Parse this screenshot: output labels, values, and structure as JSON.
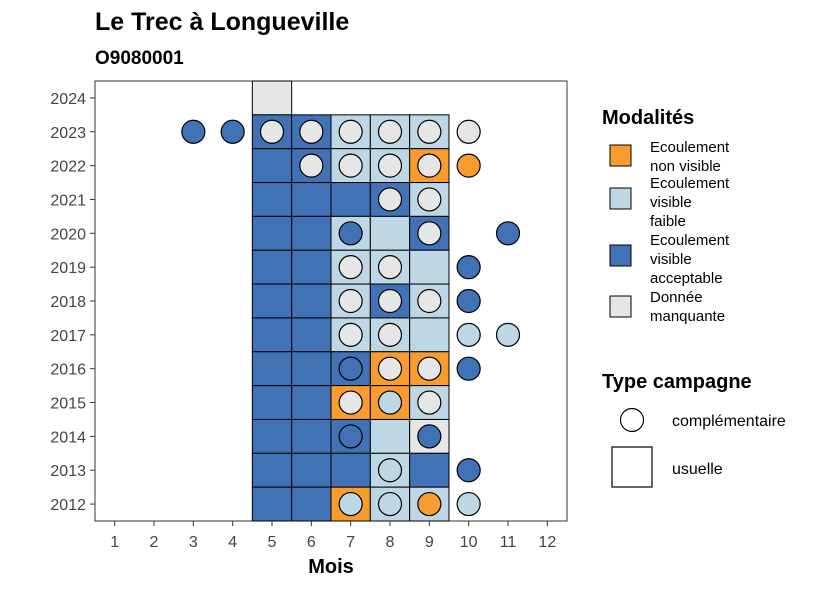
{
  "chart_data": {
    "type": "heatmap",
    "title": "Le Trec à Longueville",
    "subtitle": "O9080001",
    "xlabel": "Mois",
    "ylabel": "",
    "x_ticks": [
      "1",
      "2",
      "3",
      "4",
      "5",
      "6",
      "7",
      "8",
      "9",
      "10",
      "11",
      "12"
    ],
    "y_ticks": [
      "2012",
      "2013",
      "2014",
      "2015",
      "2016",
      "2017",
      "2018",
      "2019",
      "2020",
      "2021",
      "2022",
      "2023",
      "2024"
    ],
    "xlim": [
      0.5,
      12.5
    ],
    "ylim": [
      2011.5,
      2024.5
    ],
    "grid": false,
    "legend_position": "right",
    "colors": {
      "Ecoulement non visible": "#F99C2F",
      "Ecoulement visible faible": "#BED7E4",
      "Ecoulement visible acceptable": "#4172B5",
      "Donnée manquante": "#E6E6E6"
    },
    "legend_modalites": {
      "title": "Modalités",
      "items": [
        {
          "key": "Ecoulement non visible",
          "lines": [
            "Ecoulement",
            "non visible"
          ]
        },
        {
          "key": "Ecoulement visible faible",
          "lines": [
            "Ecoulement",
            "visible",
            "faible"
          ]
        },
        {
          "key": "Ecoulement visible acceptable",
          "lines": [
            "Ecoulement",
            "visible",
            "acceptable"
          ]
        },
        {
          "key": "Donnée manquante",
          "lines": [
            "Donnée",
            "manquante"
          ]
        }
      ]
    },
    "legend_campagne": {
      "title": "Type campagne",
      "items": [
        {
          "shape": "circle",
          "label": "complémentaire"
        },
        {
          "shape": "square",
          "label": "usuelle"
        }
      ]
    },
    "observations": [
      {
        "year": 2024,
        "month": 5,
        "campaign": "usuelle",
        "status": "Donnée manquante"
      },
      {
        "year": 2023,
        "month": 3,
        "campaign": "complémentaire",
        "status": "Ecoulement visible acceptable"
      },
      {
        "year": 2023,
        "month": 4,
        "campaign": "complémentaire",
        "status": "Ecoulement visible acceptable"
      },
      {
        "year": 2023,
        "month": 5,
        "campaign": "usuelle",
        "status": "Ecoulement visible acceptable"
      },
      {
        "year": 2023,
        "month": 5,
        "campaign": "complémentaire",
        "status": "Donnée manquante"
      },
      {
        "year": 2023,
        "month": 6,
        "campaign": "usuelle",
        "status": "Ecoulement visible acceptable"
      },
      {
        "year": 2023,
        "month": 6,
        "campaign": "complémentaire",
        "status": "Donnée manquante"
      },
      {
        "year": 2023,
        "month": 7,
        "campaign": "usuelle",
        "status": "Ecoulement visible faible"
      },
      {
        "year": 2023,
        "month": 7,
        "campaign": "complémentaire",
        "status": "Donnée manquante"
      },
      {
        "year": 2023,
        "month": 8,
        "campaign": "usuelle",
        "status": "Ecoulement visible faible"
      },
      {
        "year": 2023,
        "month": 8,
        "campaign": "complémentaire",
        "status": "Donnée manquante"
      },
      {
        "year": 2023,
        "month": 9,
        "campaign": "usuelle",
        "status": "Ecoulement visible faible"
      },
      {
        "year": 2023,
        "month": 9,
        "campaign": "complémentaire",
        "status": "Donnée manquante"
      },
      {
        "year": 2023,
        "month": 10,
        "campaign": "complémentaire",
        "status": "Donnée manquante"
      },
      {
        "year": 2022,
        "month": 5,
        "campaign": "usuelle",
        "status": "Ecoulement visible acceptable"
      },
      {
        "year": 2022,
        "month": 6,
        "campaign": "usuelle",
        "status": "Ecoulement visible acceptable"
      },
      {
        "year": 2022,
        "month": 6,
        "campaign": "complémentaire",
        "status": "Donnée manquante"
      },
      {
        "year": 2022,
        "month": 7,
        "campaign": "usuelle",
        "status": "Ecoulement visible faible"
      },
      {
        "year": 2022,
        "month": 7,
        "campaign": "complémentaire",
        "status": "Donnée manquante"
      },
      {
        "year": 2022,
        "month": 8,
        "campaign": "usuelle",
        "status": "Ecoulement visible faible"
      },
      {
        "year": 2022,
        "month": 8,
        "campaign": "complémentaire",
        "status": "Donnée manquante"
      },
      {
        "year": 2022,
        "month": 9,
        "campaign": "usuelle",
        "status": "Ecoulement non visible"
      },
      {
        "year": 2022,
        "month": 9,
        "campaign": "complémentaire",
        "status": "Donnée manquante"
      },
      {
        "year": 2022,
        "month": 10,
        "campaign": "complémentaire",
        "status": "Ecoulement non visible"
      },
      {
        "year": 2021,
        "month": 5,
        "campaign": "usuelle",
        "status": "Ecoulement visible acceptable"
      },
      {
        "year": 2021,
        "month": 6,
        "campaign": "usuelle",
        "status": "Ecoulement visible acceptable"
      },
      {
        "year": 2021,
        "month": 7,
        "campaign": "usuelle",
        "status": "Ecoulement visible acceptable"
      },
      {
        "year": 2021,
        "month": 8,
        "campaign": "usuelle",
        "status": "Ecoulement visible acceptable"
      },
      {
        "year": 2021,
        "month": 8,
        "campaign": "complémentaire",
        "status": "Donnée manquante"
      },
      {
        "year": 2021,
        "month": 9,
        "campaign": "usuelle",
        "status": "Ecoulement visible faible"
      },
      {
        "year": 2021,
        "month": 9,
        "campaign": "complémentaire",
        "status": "Donnée manquante"
      },
      {
        "year": 2020,
        "month": 5,
        "campaign": "usuelle",
        "status": "Ecoulement visible acceptable"
      },
      {
        "year": 2020,
        "month": 6,
        "campaign": "usuelle",
        "status": "Ecoulement visible acceptable"
      },
      {
        "year": 2020,
        "month": 7,
        "campaign": "usuelle",
        "status": "Ecoulement visible faible"
      },
      {
        "year": 2020,
        "month": 7,
        "campaign": "complémentaire",
        "status": "Ecoulement visible acceptable"
      },
      {
        "year": 2020,
        "month": 8,
        "campaign": "usuelle",
        "status": "Ecoulement visible faible"
      },
      {
        "year": 2020,
        "month": 9,
        "campaign": "usuelle",
        "status": "Ecoulement visible acceptable"
      },
      {
        "year": 2020,
        "month": 9,
        "campaign": "complémentaire",
        "status": "Donnée manquante"
      },
      {
        "year": 2020,
        "month": 11,
        "campaign": "complémentaire",
        "status": "Ecoulement visible acceptable"
      },
      {
        "year": 2019,
        "month": 5,
        "campaign": "usuelle",
        "status": "Ecoulement visible acceptable"
      },
      {
        "year": 2019,
        "month": 6,
        "campaign": "usuelle",
        "status": "Ecoulement visible acceptable"
      },
      {
        "year": 2019,
        "month": 7,
        "campaign": "usuelle",
        "status": "Ecoulement visible faible"
      },
      {
        "year": 2019,
        "month": 7,
        "campaign": "complémentaire",
        "status": "Donnée manquante"
      },
      {
        "year": 2019,
        "month": 8,
        "campaign": "usuelle",
        "status": "Ecoulement visible faible"
      },
      {
        "year": 2019,
        "month": 8,
        "campaign": "complémentaire",
        "status": "Donnée manquante"
      },
      {
        "year": 2019,
        "month": 9,
        "campaign": "usuelle",
        "status": "Ecoulement visible faible"
      },
      {
        "year": 2019,
        "month": 10,
        "campaign": "complémentaire",
        "status": "Ecoulement visible acceptable"
      },
      {
        "year": 2018,
        "month": 5,
        "campaign": "usuelle",
        "status": "Ecoulement visible acceptable"
      },
      {
        "year": 2018,
        "month": 6,
        "campaign": "usuelle",
        "status": "Ecoulement visible acceptable"
      },
      {
        "year": 2018,
        "month": 7,
        "campaign": "usuelle",
        "status": "Ecoulement visible faible"
      },
      {
        "year": 2018,
        "month": 7,
        "campaign": "complémentaire",
        "status": "Donnée manquante"
      },
      {
        "year": 2018,
        "month": 8,
        "campaign": "usuelle",
        "status": "Ecoulement visible acceptable"
      },
      {
        "year": 2018,
        "month": 8,
        "campaign": "complémentaire",
        "status": "Donnée manquante"
      },
      {
        "year": 2018,
        "month": 9,
        "campaign": "usuelle",
        "status": "Ecoulement visible faible"
      },
      {
        "year": 2018,
        "month": 9,
        "campaign": "complémentaire",
        "status": "Donnée manquante"
      },
      {
        "year": 2018,
        "month": 10,
        "campaign": "complémentaire",
        "status": "Ecoulement visible acceptable"
      },
      {
        "year": 2017,
        "month": 5,
        "campaign": "usuelle",
        "status": "Ecoulement visible acceptable"
      },
      {
        "year": 2017,
        "month": 6,
        "campaign": "usuelle",
        "status": "Ecoulement visible acceptable"
      },
      {
        "year": 2017,
        "month": 7,
        "campaign": "usuelle",
        "status": "Ecoulement visible faible"
      },
      {
        "year": 2017,
        "month": 7,
        "campaign": "complémentaire",
        "status": "Donnée manquante"
      },
      {
        "year": 2017,
        "month": 8,
        "campaign": "usuelle",
        "status": "Ecoulement visible faible"
      },
      {
        "year": 2017,
        "month": 8,
        "campaign": "complémentaire",
        "status": "Donnée manquante"
      },
      {
        "year": 2017,
        "month": 9,
        "campaign": "usuelle",
        "status": "Ecoulement visible faible"
      },
      {
        "year": 2017,
        "month": 10,
        "campaign": "complémentaire",
        "status": "Ecoulement visible faible"
      },
      {
        "year": 2017,
        "month": 11,
        "campaign": "complémentaire",
        "status": "Ecoulement visible faible"
      },
      {
        "year": 2016,
        "month": 5,
        "campaign": "usuelle",
        "status": "Ecoulement visible acceptable"
      },
      {
        "year": 2016,
        "month": 6,
        "campaign": "usuelle",
        "status": "Ecoulement visible acceptable"
      },
      {
        "year": 2016,
        "month": 7,
        "campaign": "usuelle",
        "status": "Ecoulement visible acceptable"
      },
      {
        "year": 2016,
        "month": 7,
        "campaign": "complémentaire",
        "status": "Ecoulement visible acceptable"
      },
      {
        "year": 2016,
        "month": 8,
        "campaign": "usuelle",
        "status": "Ecoulement non visible"
      },
      {
        "year": 2016,
        "month": 8,
        "campaign": "complémentaire",
        "status": "Donnée manquante"
      },
      {
        "year": 2016,
        "month": 9,
        "campaign": "usuelle",
        "status": "Ecoulement non visible"
      },
      {
        "year": 2016,
        "month": 9,
        "campaign": "complémentaire",
        "status": "Donnée manquante"
      },
      {
        "year": 2016,
        "month": 10,
        "campaign": "complémentaire",
        "status": "Ecoulement visible acceptable"
      },
      {
        "year": 2015,
        "month": 5,
        "campaign": "usuelle",
        "status": "Ecoulement visible acceptable"
      },
      {
        "year": 2015,
        "month": 6,
        "campaign": "usuelle",
        "status": "Ecoulement visible acceptable"
      },
      {
        "year": 2015,
        "month": 7,
        "campaign": "usuelle",
        "status": "Ecoulement non visible"
      },
      {
        "year": 2015,
        "month": 7,
        "campaign": "complémentaire",
        "status": "Donnée manquante"
      },
      {
        "year": 2015,
        "month": 8,
        "campaign": "usuelle",
        "status": "Ecoulement non visible"
      },
      {
        "year": 2015,
        "month": 8,
        "campaign": "complémentaire",
        "status": "Ecoulement visible faible"
      },
      {
        "year": 2015,
        "month": 9,
        "campaign": "usuelle",
        "status": "Ecoulement visible faible"
      },
      {
        "year": 2015,
        "month": 9,
        "campaign": "complémentaire",
        "status": "Donnée manquante"
      },
      {
        "year": 2014,
        "month": 5,
        "campaign": "usuelle",
        "status": "Ecoulement visible acceptable"
      },
      {
        "year": 2014,
        "month": 6,
        "campaign": "usuelle",
        "status": "Ecoulement visible acceptable"
      },
      {
        "year": 2014,
        "month": 7,
        "campaign": "usuelle",
        "status": "Ecoulement visible acceptable"
      },
      {
        "year": 2014,
        "month": 7,
        "campaign": "complémentaire",
        "status": "Ecoulement visible acceptable"
      },
      {
        "year": 2014,
        "month": 8,
        "campaign": "usuelle",
        "status": "Ecoulement visible faible"
      },
      {
        "year": 2014,
        "month": 9,
        "campaign": "usuelle",
        "status": "Donnée manquante"
      },
      {
        "year": 2014,
        "month": 9,
        "campaign": "complémentaire",
        "status": "Ecoulement visible acceptable"
      },
      {
        "year": 2013,
        "month": 5,
        "campaign": "usuelle",
        "status": "Ecoulement visible acceptable"
      },
      {
        "year": 2013,
        "month": 6,
        "campaign": "usuelle",
        "status": "Ecoulement visible acceptable"
      },
      {
        "year": 2013,
        "month": 7,
        "campaign": "usuelle",
        "status": "Ecoulement visible acceptable"
      },
      {
        "year": 2013,
        "month": 8,
        "campaign": "usuelle",
        "status": "Ecoulement visible faible"
      },
      {
        "year": 2013,
        "month": 8,
        "campaign": "complémentaire",
        "status": "Ecoulement visible faible"
      },
      {
        "year": 2013,
        "month": 9,
        "campaign": "usuelle",
        "status": "Ecoulement visible acceptable"
      },
      {
        "year": 2013,
        "month": 10,
        "campaign": "complémentaire",
        "status": "Ecoulement visible acceptable"
      },
      {
        "year": 2012,
        "month": 5,
        "campaign": "usuelle",
        "status": "Ecoulement visible acceptable"
      },
      {
        "year": 2012,
        "month": 6,
        "campaign": "usuelle",
        "status": "Ecoulement visible acceptable"
      },
      {
        "year": 2012,
        "month": 7,
        "campaign": "usuelle",
        "status": "Ecoulement non visible"
      },
      {
        "year": 2012,
        "month": 7,
        "campaign": "complémentaire",
        "status": "Ecoulement visible faible"
      },
      {
        "year": 2012,
        "month": 8,
        "campaign": "usuelle",
        "status": "Ecoulement visible faible"
      },
      {
        "year": 2012,
        "month": 8,
        "campaign": "complémentaire",
        "status": "Ecoulement visible faible"
      },
      {
        "year": 2012,
        "month": 9,
        "campaign": "usuelle",
        "status": "Ecoulement visible faible"
      },
      {
        "year": 2012,
        "month": 9,
        "campaign": "complémentaire",
        "status": "Ecoulement non visible"
      },
      {
        "year": 2012,
        "month": 10,
        "campaign": "complémentaire",
        "status": "Ecoulement visible faible"
      }
    ]
  }
}
